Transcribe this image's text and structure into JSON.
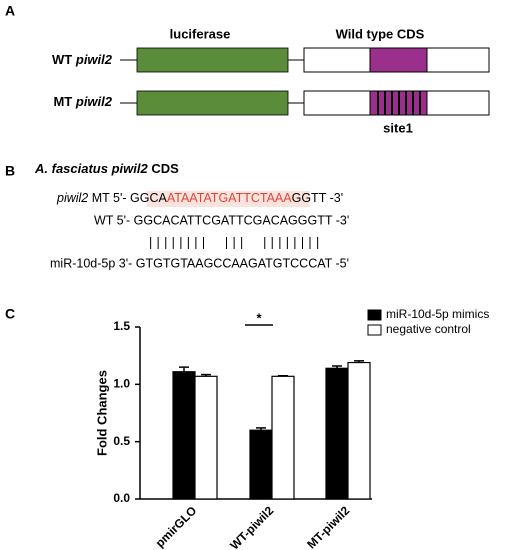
{
  "panel_a": {
    "letter": "A",
    "luciferase_label": "luciferase",
    "cds_label": "Wild type CDS",
    "rows": [
      {
        "prefix": "WT",
        "gene": "piwil2"
      },
      {
        "prefix": "MT",
        "gene": "piwil2"
      }
    ],
    "site_label": "site1"
  },
  "panel_b": {
    "letter": "B",
    "title_species": "A. fasciatus piwil2",
    "title_suffix": "CDS",
    "mt_gene": "piwil2",
    "mt_prefix": " MT 5'- GGCA",
    "mt_site": "ATAATATGATTCTAAA",
    "mt_suffix": "GGTT -3'",
    "wt_line": "WT 5'- GGCACATTCGATTCGACAGGGTT -3'",
    "pairing": "||||||||  |||  ||||||||",
    "mirna_line": "miR-10d-5p 3'- GTGTGTAAGCCAAGATGTCCCAT -5'"
  },
  "panel_c": {
    "letter": "C"
  },
  "chart_data": {
    "type": "bar",
    "ylabel": "Fold Changes",
    "annotation": "*",
    "categories": [
      "pmirGLO",
      "WT-piwil2",
      "MT-piwil2"
    ],
    "series": [
      {
        "name": "miR-10d-5p mimics",
        "color": "#000000",
        "values": [
          1.11,
          0.6,
          1.14
        ],
        "errors": [
          0.04,
          0.02,
          0.02
        ]
      },
      {
        "name": "negative control",
        "color": "#ffffff",
        "values": [
          1.07,
          1.07,
          1.19
        ],
        "errors": [
          0.015,
          0.005,
          0.015
        ]
      }
    ],
    "ylim": [
      0,
      1.5
    ],
    "yticks": [
      {
        "value": 0,
        "label": "0.0"
      },
      0.5,
      {
        "value": 1,
        "label": "1.0"
      },
      1.5
    ]
  }
}
